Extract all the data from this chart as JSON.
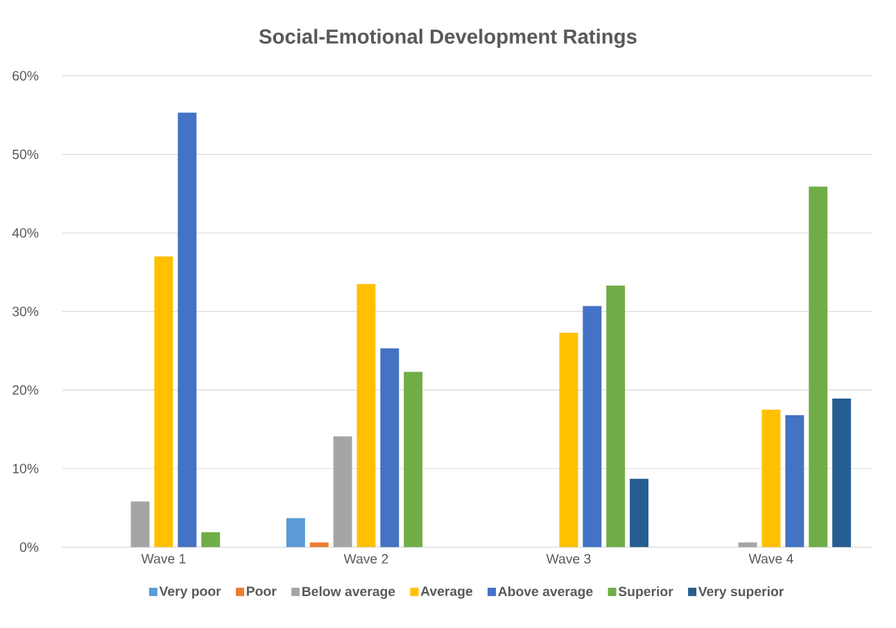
{
  "chart_data": {
    "type": "bar",
    "title": "Social-Emotional Development Ratings",
    "categories": [
      "Wave 1",
      "Wave 2",
      "Wave 3",
      "Wave 4"
    ],
    "series": [
      {
        "name": "Very poor",
        "color": "#5b9bd5",
        "values": [
          0,
          3.7,
          0,
          0
        ]
      },
      {
        "name": "Poor",
        "color": "#ed7d31",
        "values": [
          0,
          0.6,
          0,
          0
        ]
      },
      {
        "name": "Below average",
        "color": "#a5a5a5",
        "values": [
          5.8,
          14.1,
          0,
          0.6
        ]
      },
      {
        "name": "Average",
        "color": "#ffc000",
        "values": [
          37.0,
          33.5,
          27.3,
          17.5
        ]
      },
      {
        "name": "Above average",
        "color": "#4472c4",
        "values": [
          55.3,
          25.3,
          30.7,
          16.8
        ]
      },
      {
        "name": "Superior",
        "color": "#70ad47",
        "values": [
          1.9,
          22.3,
          33.3,
          45.9
        ]
      },
      {
        "name": "Very superior",
        "color": "#255e91",
        "values": [
          0,
          0,
          8.7,
          18.9
        ]
      }
    ],
    "ylim": [
      0,
      60
    ],
    "yticks": [
      {
        "value": 0,
        "label": "0%"
      },
      {
        "value": 10,
        "label": "10%"
      },
      {
        "value": 20,
        "label": "20%"
      },
      {
        "value": 30,
        "label": "30%"
      },
      {
        "value": 40,
        "label": "40%"
      },
      {
        "value": 50,
        "label": "50%"
      },
      {
        "value": 60,
        "label": "60%"
      }
    ],
    "grid": "y",
    "legend": "bottom"
  }
}
